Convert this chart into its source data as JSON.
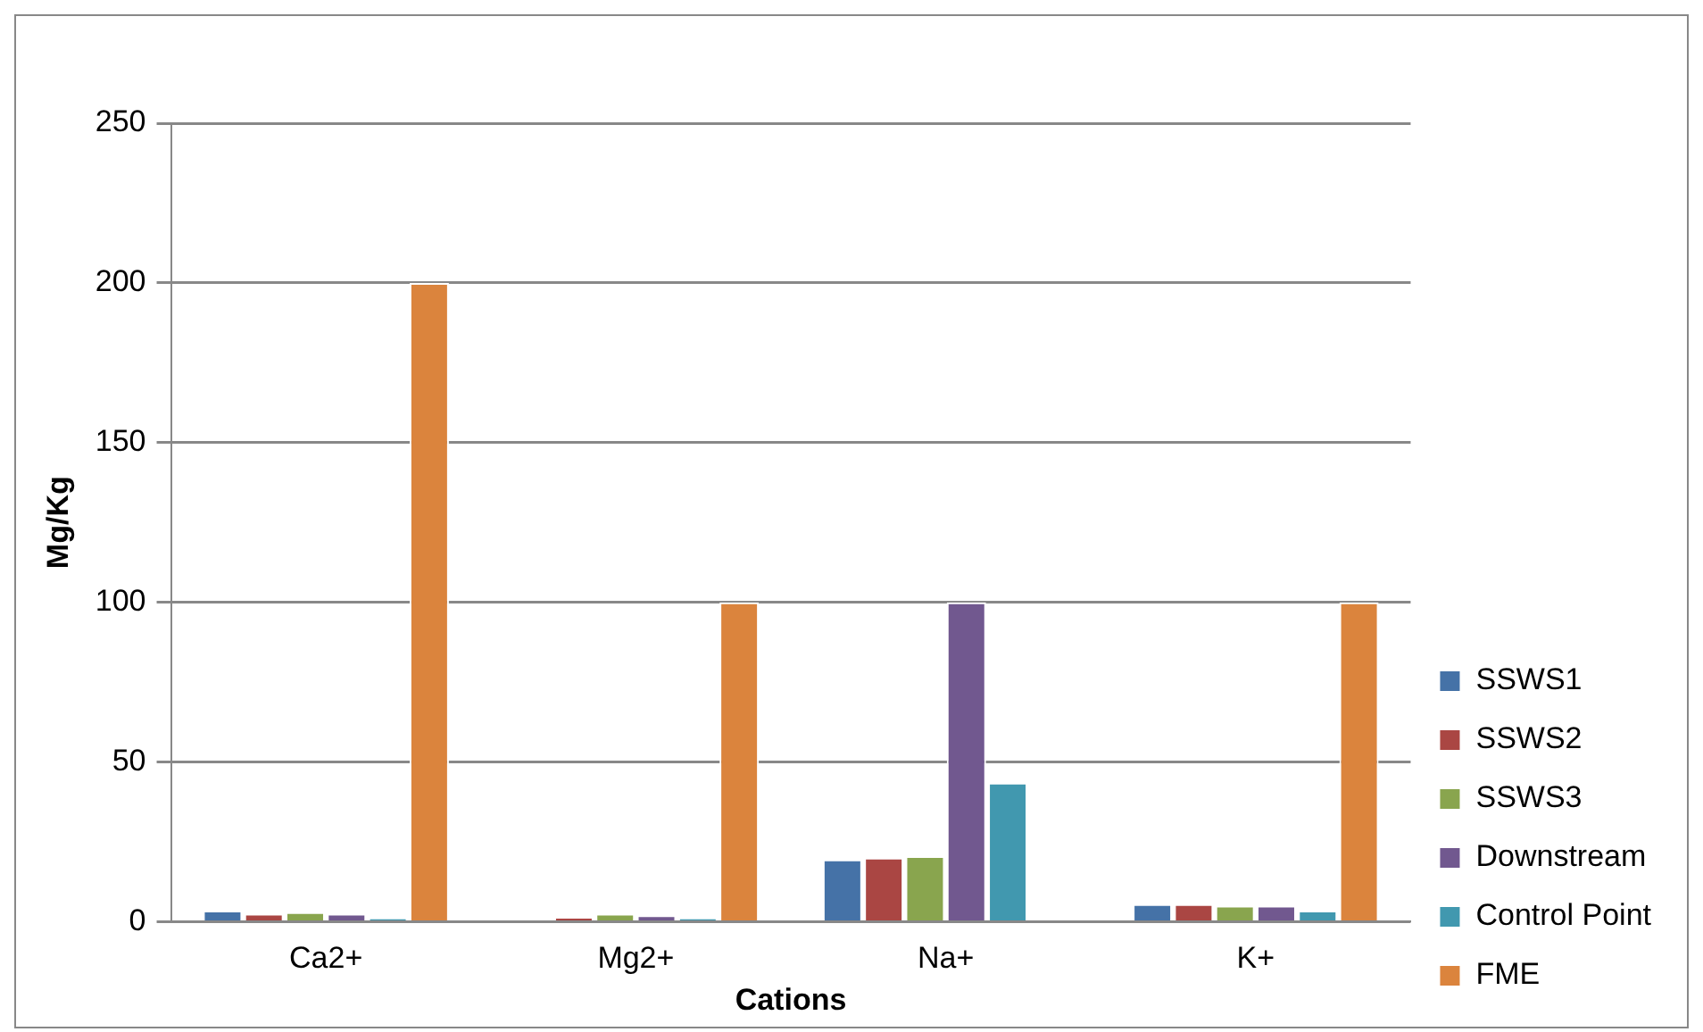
{
  "chart_data": {
    "type": "bar",
    "xlabel": "Cations",
    "ylabel": "Mg/Kg",
    "categories": [
      "Ca2+",
      "Mg2+",
      "Na+",
      "K+"
    ],
    "ylim": [
      0,
      250
    ],
    "yticks": [
      0,
      50,
      100,
      150,
      200,
      250
    ],
    "grid": "y",
    "legend": "right",
    "series": [
      {
        "name": "SSWS1",
        "color": "#4572a7",
        "values": [
          3.5,
          0,
          19.5,
          5.5
        ]
      },
      {
        "name": "SSWS2",
        "color": "#aa4643",
        "values": [
          2.5,
          1.5,
          20,
          5.5
        ]
      },
      {
        "name": "SSWS3",
        "color": "#89a54e",
        "values": [
          3,
          2.5,
          20.5,
          5
        ]
      },
      {
        "name": "Downstream",
        "color": "#71588f",
        "values": [
          2.5,
          2,
          100,
          5
        ]
      },
      {
        "name": "Control Point",
        "color": "#4198af",
        "values": [
          1,
          1,
          43.5,
          3.5
        ]
      },
      {
        "name": "FME",
        "color": "#db843d",
        "values": [
          200,
          100,
          0,
          100
        ]
      }
    ]
  }
}
